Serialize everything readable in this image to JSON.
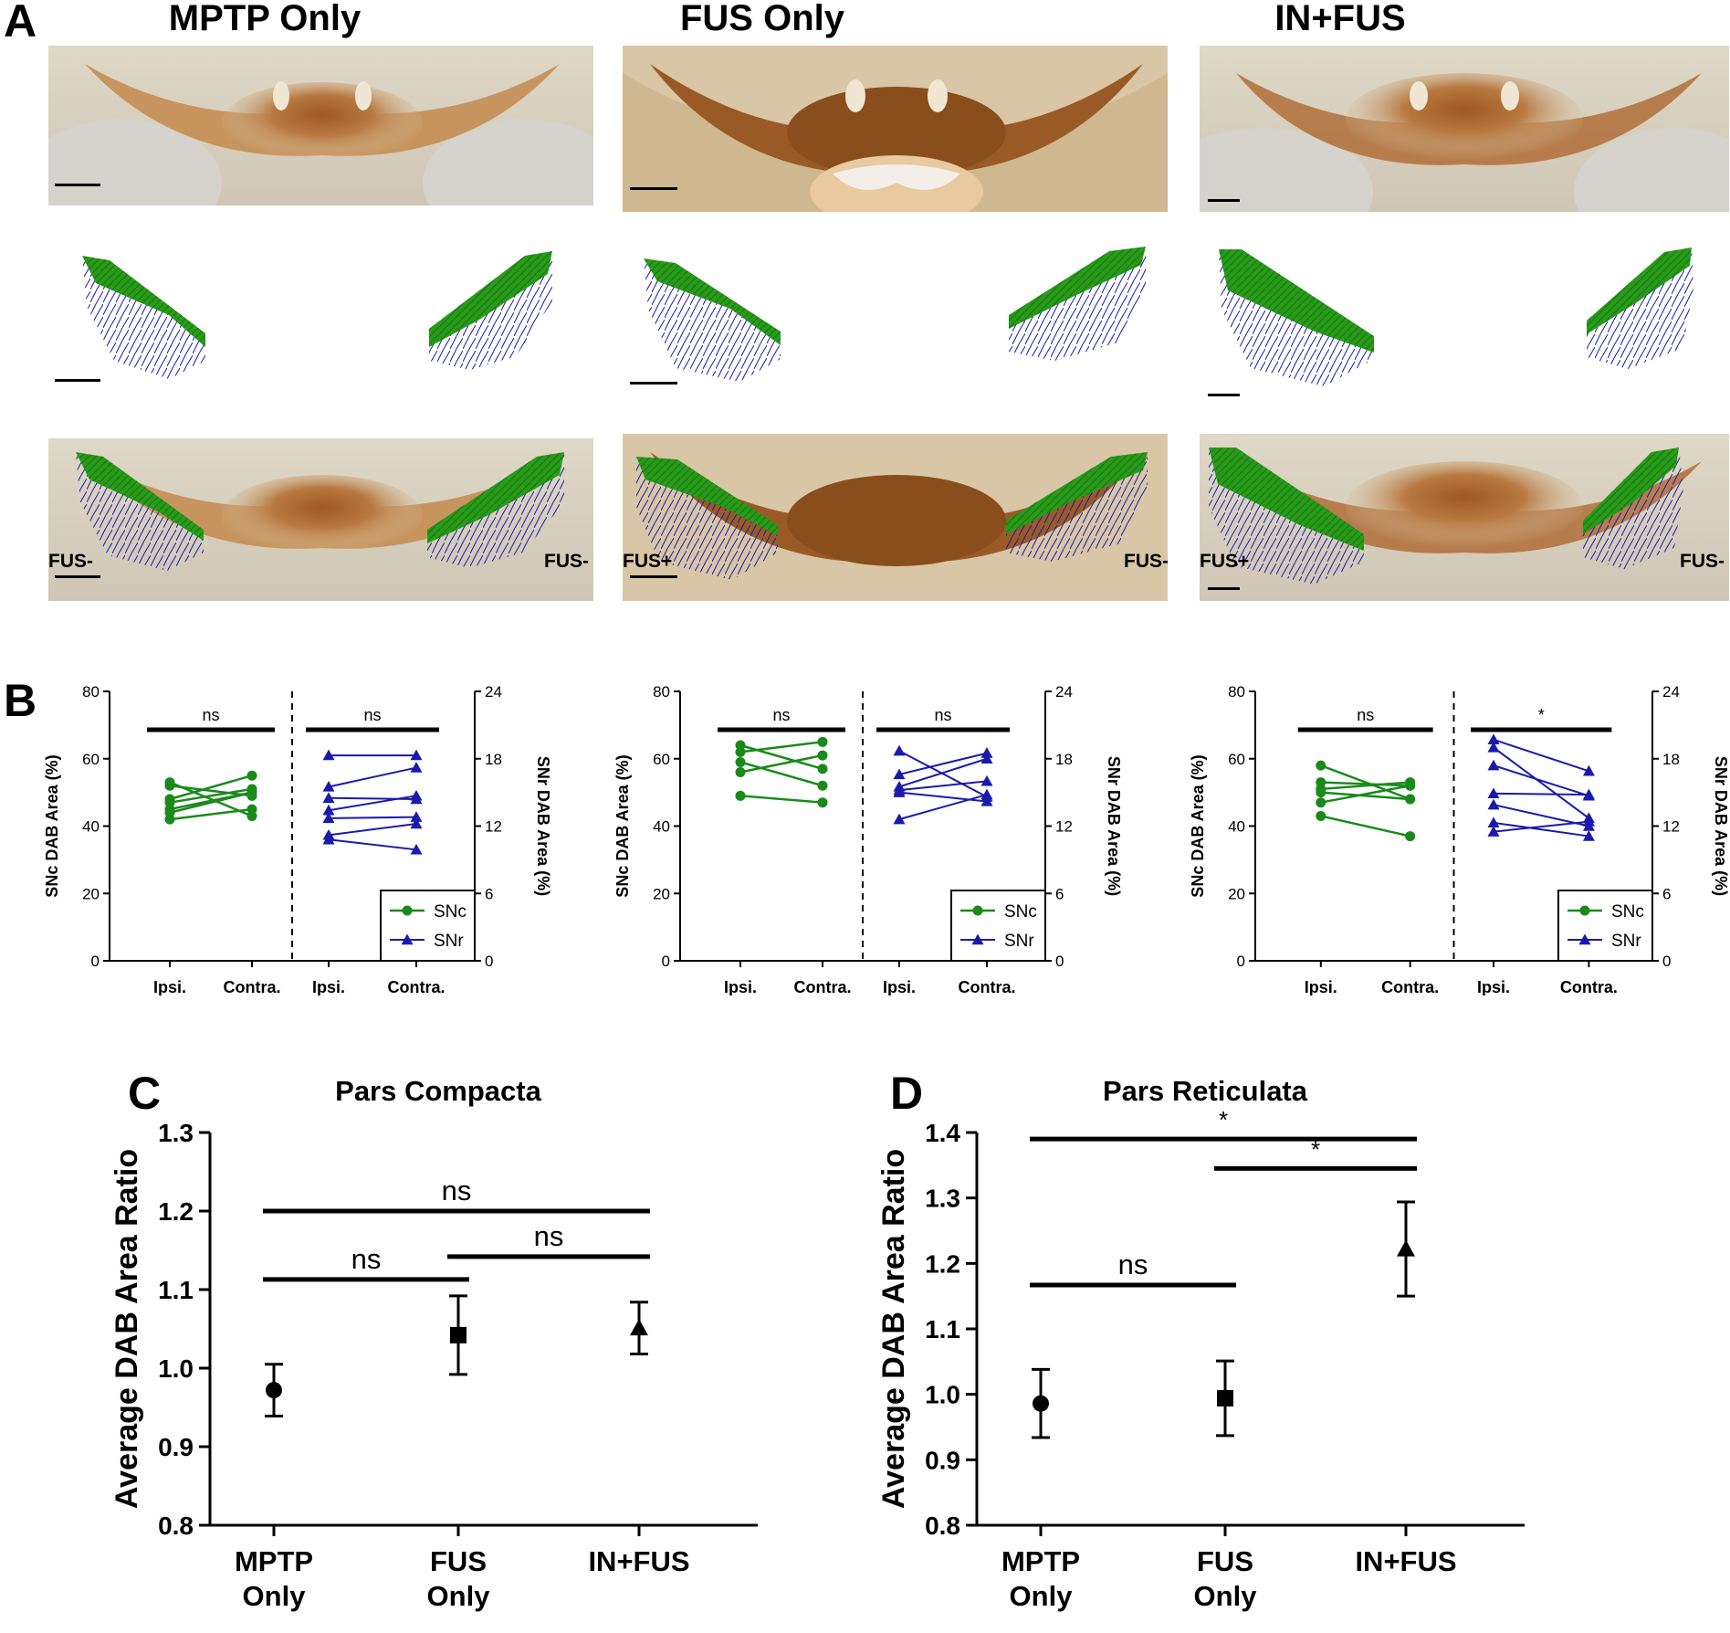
{
  "panel_letters": {
    "a": "A",
    "b": "B",
    "c": "C",
    "d": "D"
  },
  "panel_a": {
    "columns": [
      {
        "title": "MPTP Only",
        "left_label": "FUS-",
        "right_label": "FUS-"
      },
      {
        "title": "FUS Only",
        "left_label": "FUS+",
        "right_label": "FUS-"
      },
      {
        "title": "IN+FUS",
        "left_label": "FUS+",
        "right_label": "FUS-"
      }
    ]
  },
  "colors": {
    "snc": "#1a8a1a",
    "snr": "#1a1aaa",
    "dab": "#b5753a",
    "tissue": "#dcd3c0"
  },
  "chart_data": [
    {
      "id": "B1",
      "type": "line",
      "x_labels": [
        "Ipsi.",
        "Contra.",
        "Ipsi.",
        "Contra."
      ],
      "ylabel_left": "SNc DAB Area (%)",
      "ylim_left": [
        0,
        80
      ],
      "yticks_left": [
        "0",
        "20",
        "40",
        "60",
        "80"
      ],
      "ylabel_right": "SNr DAB Area (%)",
      "ylim_right": [
        0,
        24
      ],
      "yticks_right": [
        "0",
        "6",
        "12",
        "18",
        "24"
      ],
      "sig_left": "ns",
      "sig_right": "ns",
      "legend": [
        "SNc",
        "SNr"
      ],
      "snc_pairs": [
        [
          53,
          43
        ],
        [
          52,
          49
        ],
        [
          48,
          55
        ],
        [
          47,
          51
        ],
        [
          45,
          50
        ],
        [
          44,
          50
        ],
        [
          42,
          45
        ]
      ],
      "snr_pairs": [
        [
          18.3,
          18.3
        ],
        [
          15.5,
          17.2
        ],
        [
          14.5,
          14.4
        ],
        [
          13.4,
          14.7
        ],
        [
          12.7,
          12.8
        ],
        [
          11.2,
          12.2
        ],
        [
          10.8,
          9.9
        ]
      ]
    },
    {
      "id": "B2",
      "type": "line",
      "x_labels": [
        "Ipsi.",
        "Contra.",
        "Ipsi.",
        "Contra."
      ],
      "ylabel_left": "SNc DAB Area (%)",
      "ylim_left": [
        0,
        80
      ],
      "yticks_left": [
        "0",
        "20",
        "40",
        "60",
        "80"
      ],
      "ylabel_right": "SNr DAB Area (%)",
      "ylim_right": [
        0,
        24
      ],
      "yticks_right": [
        "0",
        "6",
        "12",
        "18",
        "24"
      ],
      "sig_left": "ns",
      "sig_right": "ns",
      "legend": [
        "SNc",
        "SNr"
      ],
      "snc_pairs": [
        [
          64,
          57
        ],
        [
          62,
          65
        ],
        [
          59,
          52
        ],
        [
          56,
          61
        ],
        [
          49,
          47
        ]
      ],
      "snr_pairs": [
        [
          18.7,
          14.6
        ],
        [
          16.6,
          18.5
        ],
        [
          15.5,
          18.0
        ],
        [
          15.2,
          16.0
        ],
        [
          15.0,
          14.2
        ],
        [
          12.6,
          14.8
        ]
      ]
    },
    {
      "id": "B3",
      "type": "line",
      "x_labels": [
        "Ipsi.",
        "Contra.",
        "Ipsi.",
        "Contra."
      ],
      "ylabel_left": "SNc DAB Area (%)",
      "ylim_left": [
        0,
        80
      ],
      "yticks_left": [
        "0",
        "20",
        "40",
        "60",
        "80"
      ],
      "ylabel_right": "SNr DAB Area (%)",
      "ylim_right": [
        0,
        24
      ],
      "yticks_right": [
        "0",
        "6",
        "12",
        "18",
        "24"
      ],
      "sig_left": "ns",
      "sig_right": "*",
      "legend": [
        "SNc",
        "SNr"
      ],
      "snc_pairs": [
        [
          58,
          48
        ],
        [
          53,
          52
        ],
        [
          51,
          53
        ],
        [
          50,
          48
        ],
        [
          47,
          52
        ],
        [
          43,
          37
        ]
      ],
      "snr_pairs": [
        [
          19.7,
          16.9
        ],
        [
          19.0,
          12.7
        ],
        [
          17.4,
          14.7
        ],
        [
          14.9,
          14.8
        ],
        [
          13.9,
          12.0
        ],
        [
          12.3,
          11.1
        ],
        [
          11.5,
          12.4
        ]
      ]
    },
    {
      "id": "C",
      "type": "scatter",
      "title": "Pars Compacta",
      "ylabel": "Average DAB Area Ratio",
      "ylim": [
        0.8,
        1.3
      ],
      "yticks": [
        "0.8",
        "0.9",
        "1.0",
        "1.1",
        "1.2",
        "1.3"
      ],
      "categories": [
        [
          "MPTP",
          "Only"
        ],
        [
          "FUS",
          "Only"
        ],
        [
          "IN+FUS"
        ]
      ],
      "markers": [
        "circle",
        "square",
        "triangle"
      ],
      "means": [
        0.972,
        1.042,
        1.051
      ],
      "errors": [
        0.033,
        0.05,
        0.033
      ],
      "comparisons": [
        {
          "from": 0,
          "to": 2,
          "y": 1.2,
          "label": "ns"
        },
        {
          "from": 0,
          "to": 1,
          "y": 1.113,
          "label": "ns"
        },
        {
          "from": 1,
          "to": 2,
          "y": 1.142,
          "label": "ns"
        }
      ]
    },
    {
      "id": "D",
      "type": "scatter",
      "title": "Pars Reticulata",
      "ylabel": "Average DAB Area Ratio",
      "ylim": [
        0.8,
        1.4
      ],
      "yticks": [
        "0.8",
        "0.9",
        "1.0",
        "1.1",
        "1.2",
        "1.3",
        "1.4"
      ],
      "categories": [
        [
          "MPTP",
          "Only"
        ],
        [
          "FUS",
          "Only"
        ],
        [
          "IN+FUS"
        ]
      ],
      "markers": [
        "circle",
        "square",
        "triangle"
      ],
      "means": [
        0.986,
        0.994,
        1.222
      ],
      "errors": [
        0.052,
        0.057,
        0.072
      ],
      "comparisons": [
        {
          "from": 0,
          "to": 2,
          "y": 1.39,
          "label": "*"
        },
        {
          "from": 1,
          "to": 2,
          "y": 1.345,
          "label": "*"
        },
        {
          "from": 0,
          "to": 1,
          "y": 1.167,
          "label": "ns"
        }
      ]
    }
  ]
}
